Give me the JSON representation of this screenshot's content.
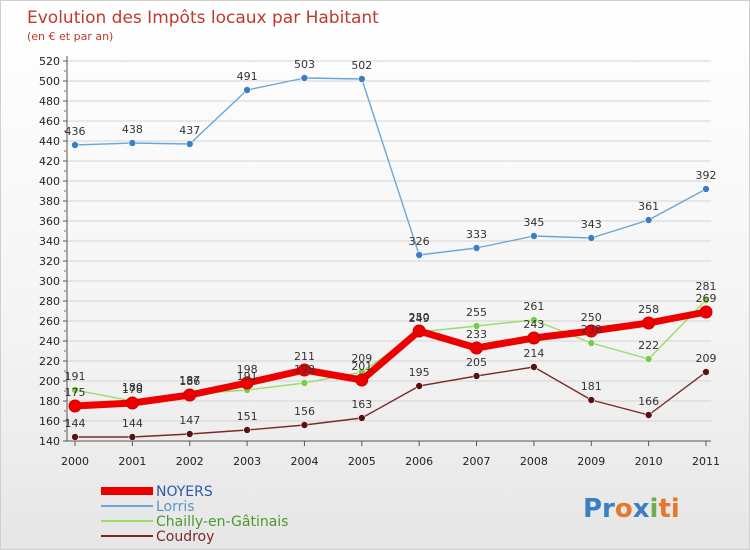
{
  "brand": {
    "parts": [
      {
        "text": "Pr",
        "color": "#3a7fc4"
      },
      {
        "text": "o",
        "color": "#e8772e"
      },
      {
        "text": "x",
        "color": "#3a7fc4"
      },
      {
        "text": "i",
        "color": "#6ab04c"
      },
      {
        "text": "ti",
        "color": "#e8772e"
      }
    ]
  },
  "chart_data": {
    "type": "line",
    "title": "Evolution des Impôts locaux par Habitant",
    "subtitle": "(en € et par an)",
    "x": [
      "2000",
      "2001",
      "2002",
      "2003",
      "2004",
      "2005",
      "2006",
      "2007",
      "2008",
      "2009",
      "2010",
      "2011"
    ],
    "ylim": [
      140,
      520
    ],
    "yticks": [
      140,
      160,
      180,
      200,
      220,
      240,
      260,
      280,
      300,
      320,
      340,
      360,
      380,
      400,
      420,
      440,
      460,
      480,
      500,
      520
    ],
    "grid": true,
    "legend_position": "bottom-left",
    "series": [
      {
        "name": "NOYERS",
        "color": "#ee0000",
        "width": 7,
        "marker_radius": 6,
        "values": [
          175,
          178,
          186,
          198,
          211,
          201,
          250,
          233,
          243,
          250,
          258,
          269
        ],
        "labels": [
          "175",
          "178",
          "186",
          "198",
          "211",
          "201",
          "250",
          "233",
          "243",
          "250",
          "258",
          "269"
        ]
      },
      {
        "name": "Lorris",
        "color": "#6aa7d8",
        "marker_color": "#3a7fc4",
        "width": 1.4,
        "marker_radius": 3.5,
        "values": [
          436,
          438,
          437,
          491,
          503,
          502,
          326,
          333,
          345,
          343,
          361,
          392
        ],
        "labels": [
          "436",
          "438",
          "437",
          "491",
          "503",
          "502",
          "326",
          "333",
          "345",
          "343",
          "361",
          "392"
        ]
      },
      {
        "name": "Chailly-en-Gâtinais",
        "color": "#99dd66",
        "marker_color": "#77cc44",
        "width": 1.4,
        "marker_radius": 3.5,
        "values": [
          191,
          180,
          187,
          191,
          198,
          209,
          249,
          255,
          261,
          238,
          222,
          281
        ],
        "labels": [
          "191",
          "180",
          "187",
          "191",
          "198",
          "209",
          "249",
          "255",
          "261",
          "238",
          "222",
          "281"
        ]
      },
      {
        "name": "Coudroy",
        "color": "#7a2a2a",
        "marker_color": "#5a1010",
        "width": 1.4,
        "marker_radius": 3.5,
        "values": [
          144,
          144,
          147,
          151,
          156,
          163,
          195,
          205,
          214,
          181,
          166,
          209
        ],
        "labels": [
          "144",
          "144",
          "147",
          "151",
          "156",
          "163",
          "195",
          "205",
          "214",
          "181",
          "166",
          "209"
        ]
      }
    ]
  }
}
